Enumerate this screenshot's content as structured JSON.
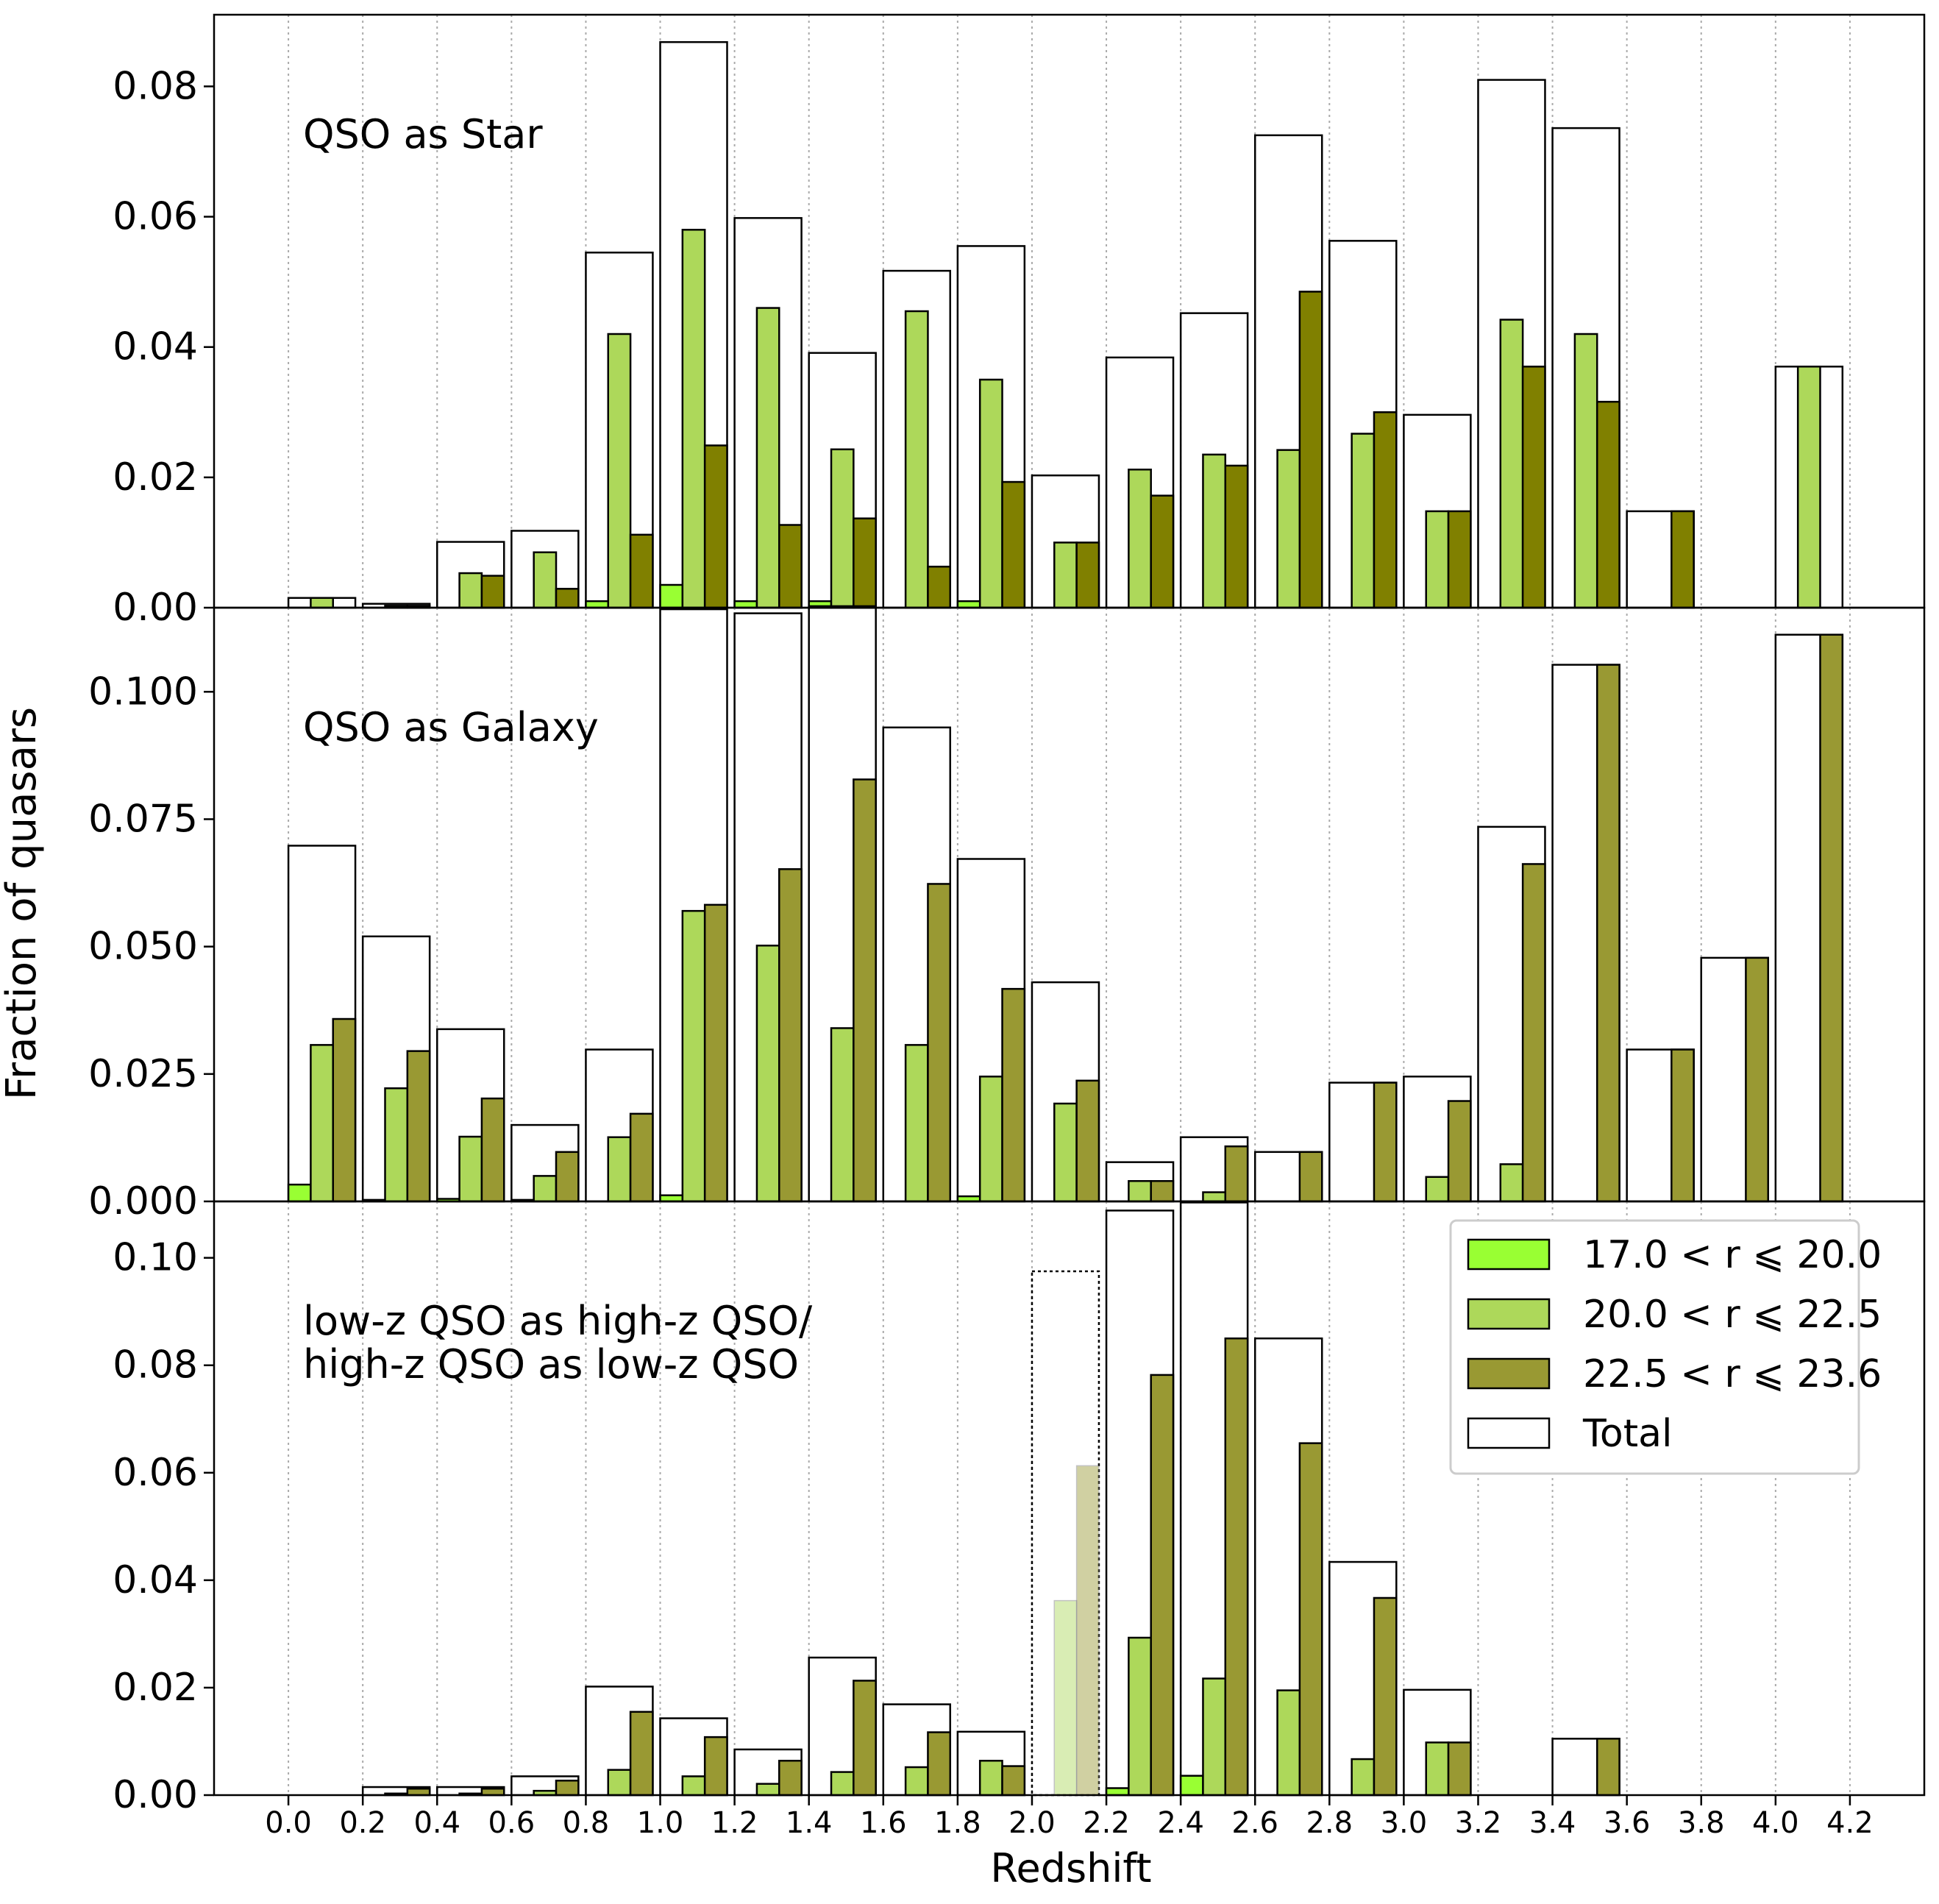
{
  "figure": {
    "ylabel": "Fraction of quasars",
    "xlabel": "Redshift",
    "x_ticks": [
      "0.0",
      "0.2",
      "0.4",
      "0.6",
      "0.8",
      "1.0",
      "1.2",
      "1.4",
      "1.6",
      "1.8",
      "2.0",
      "2.2",
      "2.4",
      "2.6",
      "2.8",
      "3.0",
      "3.2",
      "3.4",
      "3.6",
      "3.8",
      "4.0",
      "4.2"
    ]
  },
  "colors": {
    "s1": "#99ff33",
    "s2": "#add85a",
    "s3_star": "#808000",
    "s3": "#999933",
    "total_edge": "#000000",
    "grid": "#aaaaaa"
  },
  "legend": {
    "location": "top-right of bottom panel",
    "entries": [
      {
        "label": "17.0 < r ⩽ 20.0",
        "color": "#99ff33"
      },
      {
        "label": "20.0 < r ⩽ 22.5",
        "color": "#add85a"
      },
      {
        "label": "22.5 < r ⩽ 23.6",
        "color": "#999933"
      },
      {
        "label": "Total",
        "color": "#ffffff"
      }
    ]
  },
  "chart_data": [
    {
      "type": "bar",
      "title": "QSO as Star",
      "ylim": [
        0,
        0.091
      ],
      "ytick_labels": [
        "0.00",
        "0.02",
        "0.04",
        "0.06",
        "0.08"
      ],
      "ytick_values": [
        0,
        0.02,
        0.04,
        0.06,
        0.08
      ],
      "xlim": [
        -0.2,
        4.4
      ],
      "bin_starts": [
        0.0,
        0.2,
        0.4,
        0.6,
        0.8,
        1.0,
        1.2,
        1.4,
        1.6,
        1.8,
        2.0,
        2.2,
        2.4,
        2.6,
        2.8,
        3.0,
        3.2,
        3.4,
        3.6,
        3.8,
        4.0
      ],
      "series": [
        {
          "name": "17.0 < r ⩽ 20.0",
          "values": [
            0,
            0,
            0,
            0,
            0.001,
            0.0035,
            0.001,
            0.001,
            0,
            0.001,
            0,
            0,
            0,
            0,
            0,
            0,
            0,
            0,
            0,
            0,
            0
          ]
        },
        {
          "name": "20.0 < r ⩽ 22.5",
          "values": [
            0.0015,
            0.0003,
            0.0053,
            0.0085,
            0.042,
            0.058,
            0.046,
            0.0243,
            0.0455,
            0.035,
            0.01,
            0.0212,
            0.0235,
            0.0242,
            0.0267,
            0.0148,
            0.0442,
            0.042,
            0,
            0,
            0.037
          ]
        },
        {
          "name": "22.5 < r ⩽ 23.6",
          "values": [
            0,
            0.0003,
            0.0049,
            0.0029,
            0.0112,
            0.0249,
            0.0127,
            0.0137,
            0.0063,
            0.0193,
            0.01,
            0.0172,
            0.0218,
            0.0485,
            0.03,
            0.0148,
            0.037,
            0.0316,
            0.0148,
            0,
            0
          ]
        },
        {
          "name": "Total",
          "values": [
            0.0015,
            0.0006,
            0.0101,
            0.0118,
            0.0545,
            0.0868,
            0.0598,
            0.0391,
            0.0517,
            0.0555,
            0.0203,
            0.0384,
            0.0452,
            0.0725,
            0.0563,
            0.0296,
            0.081,
            0.0736,
            0.0148,
            0,
            0.037
          ]
        }
      ]
    },
    {
      "type": "bar",
      "title": "QSO as Galaxy",
      "ylim": [
        0,
        0.1165
      ],
      "ytick_labels": [
        "0.000",
        "0.025",
        "0.050",
        "0.075",
        "0.100"
      ],
      "ytick_values": [
        0,
        0.025,
        0.05,
        0.075,
        0.1
      ],
      "xlim": [
        -0.2,
        4.4
      ],
      "bin_starts": [
        0.0,
        0.2,
        0.4,
        0.6,
        0.8,
        1.0,
        1.2,
        1.4,
        1.6,
        1.8,
        2.0,
        2.2,
        2.4,
        2.6,
        2.8,
        3.0,
        3.2,
        3.4,
        3.6,
        3.8,
        4.0
      ],
      "series": [
        {
          "name": "17.0 < r ⩽ 20.0",
          "values": [
            0.0033,
            0.0003,
            0.0005,
            0.0003,
            0,
            0.0012,
            0,
            0,
            0,
            0.001,
            0,
            0,
            0,
            0,
            0,
            0,
            0,
            0,
            0,
            0,
            0
          ]
        },
        {
          "name": "20.0 < r ⩽ 22.5",
          "values": [
            0.0307,
            0.0222,
            0.0127,
            0.005,
            0.0126,
            0.057,
            0.0502,
            0.034,
            0.0307,
            0.0245,
            0.0192,
            0.004,
            0.0018,
            0,
            0,
            0.0048,
            0.0073,
            0,
            0,
            0,
            0
          ]
        },
        {
          "name": "22.5 < r ⩽ 23.6",
          "values": [
            0.0358,
            0.0295,
            0.0202,
            0.0097,
            0.0172,
            0.0582,
            0.0652,
            0.0828,
            0.0623,
            0.0417,
            0.0237,
            0.004,
            0.0108,
            0.0097,
            0.0233,
            0.0197,
            0.0662,
            0.1053,
            0.0298,
            0.0478,
            0.1112
          ]
        },
        {
          "name": "Total",
          "values": [
            0.0698,
            0.052,
            0.0338,
            0.015,
            0.0298,
            0.1162,
            0.1154,
            0.1168,
            0.093,
            0.0672,
            0.043,
            0.0077,
            0.0126,
            0.0097,
            0.0233,
            0.0245,
            0.0735,
            0.1053,
            0.0298,
            0.0478,
            0.1112
          ]
        }
      ]
    },
    {
      "type": "bar",
      "title": "low-z QSO as high-z QSO/\nhigh-z QSO as low-z QSO",
      "title_lines": [
        "low-z QSO as high-z QSO/",
        "high-z QSO as low-z QSO"
      ],
      "ylim": [
        0,
        0.1105
      ],
      "ytick_labels": [
        "0.00",
        "0.02",
        "0.04",
        "0.06",
        "0.08",
        "0.10"
      ],
      "ytick_values": [
        0,
        0.02,
        0.04,
        0.06,
        0.08,
        0.1
      ],
      "xlim": [
        -0.2,
        4.4
      ],
      "highlighted_bin": 2.0,
      "bin_starts": [
        0.0,
        0.2,
        0.4,
        0.6,
        0.8,
        1.0,
        1.2,
        1.4,
        1.6,
        1.8,
        2.0,
        2.2,
        2.4,
        2.6,
        2.8,
        3.0,
        3.2,
        3.4,
        3.6,
        3.8,
        4.0
      ],
      "series": [
        {
          "name": "17.0 < r ⩽ 20.0",
          "values": [
            0,
            0,
            0,
            0,
            0,
            0,
            0,
            0,
            0,
            0,
            0,
            0.0013,
            0.0036,
            0,
            0,
            0,
            0,
            0,
            0,
            0,
            0
          ]
        },
        {
          "name": "20.0 < r ⩽ 22.5",
          "values": [
            0,
            0.0003,
            0.0003,
            0.0008,
            0.0047,
            0.0035,
            0.0021,
            0.0043,
            0.0052,
            0.0064,
            0.0362,
            0.0293,
            0.0217,
            0.0195,
            0.0067,
            0.0098,
            0,
            0,
            0,
            0,
            0
          ]
        },
        {
          "name": "22.5 < r ⩽ 23.6",
          "values": [
            0,
            0.0012,
            0.0012,
            0.0027,
            0.0155,
            0.0108,
            0.0064,
            0.0213,
            0.0117,
            0.0054,
            0.0613,
            0.0782,
            0.085,
            0.0655,
            0.0367,
            0.0098,
            0,
            0.0105,
            0,
            0,
            0
          ]
        },
        {
          "name": "Total",
          "values": [
            0,
            0.0015,
            0.0015,
            0.0035,
            0.0202,
            0.0143,
            0.0085,
            0.0256,
            0.0169,
            0.0118,
            0.0975,
            0.1088,
            0.1103,
            0.085,
            0.0434,
            0.0196,
            0,
            0.0105,
            0,
            0,
            0
          ]
        }
      ]
    }
  ]
}
